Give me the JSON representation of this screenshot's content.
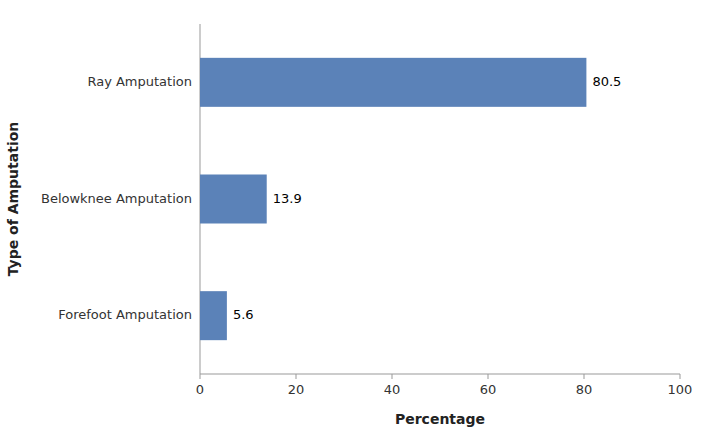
{
  "chart_data": {
    "type": "bar",
    "orientation": "horizontal",
    "categories": [
      "Ray Amputation",
      "Belowknee Amputation",
      "Forefoot Amputation"
    ],
    "values": [
      80.5,
      13.9,
      5.6
    ],
    "color": "#5b82b8",
    "xlabel": "Percentage",
    "ylabel": "Type of Amputation",
    "xlim": [
      0,
      100
    ],
    "xticks": [
      0,
      20,
      40,
      60,
      80,
      100
    ],
    "data_labels": true,
    "grid": false
  }
}
